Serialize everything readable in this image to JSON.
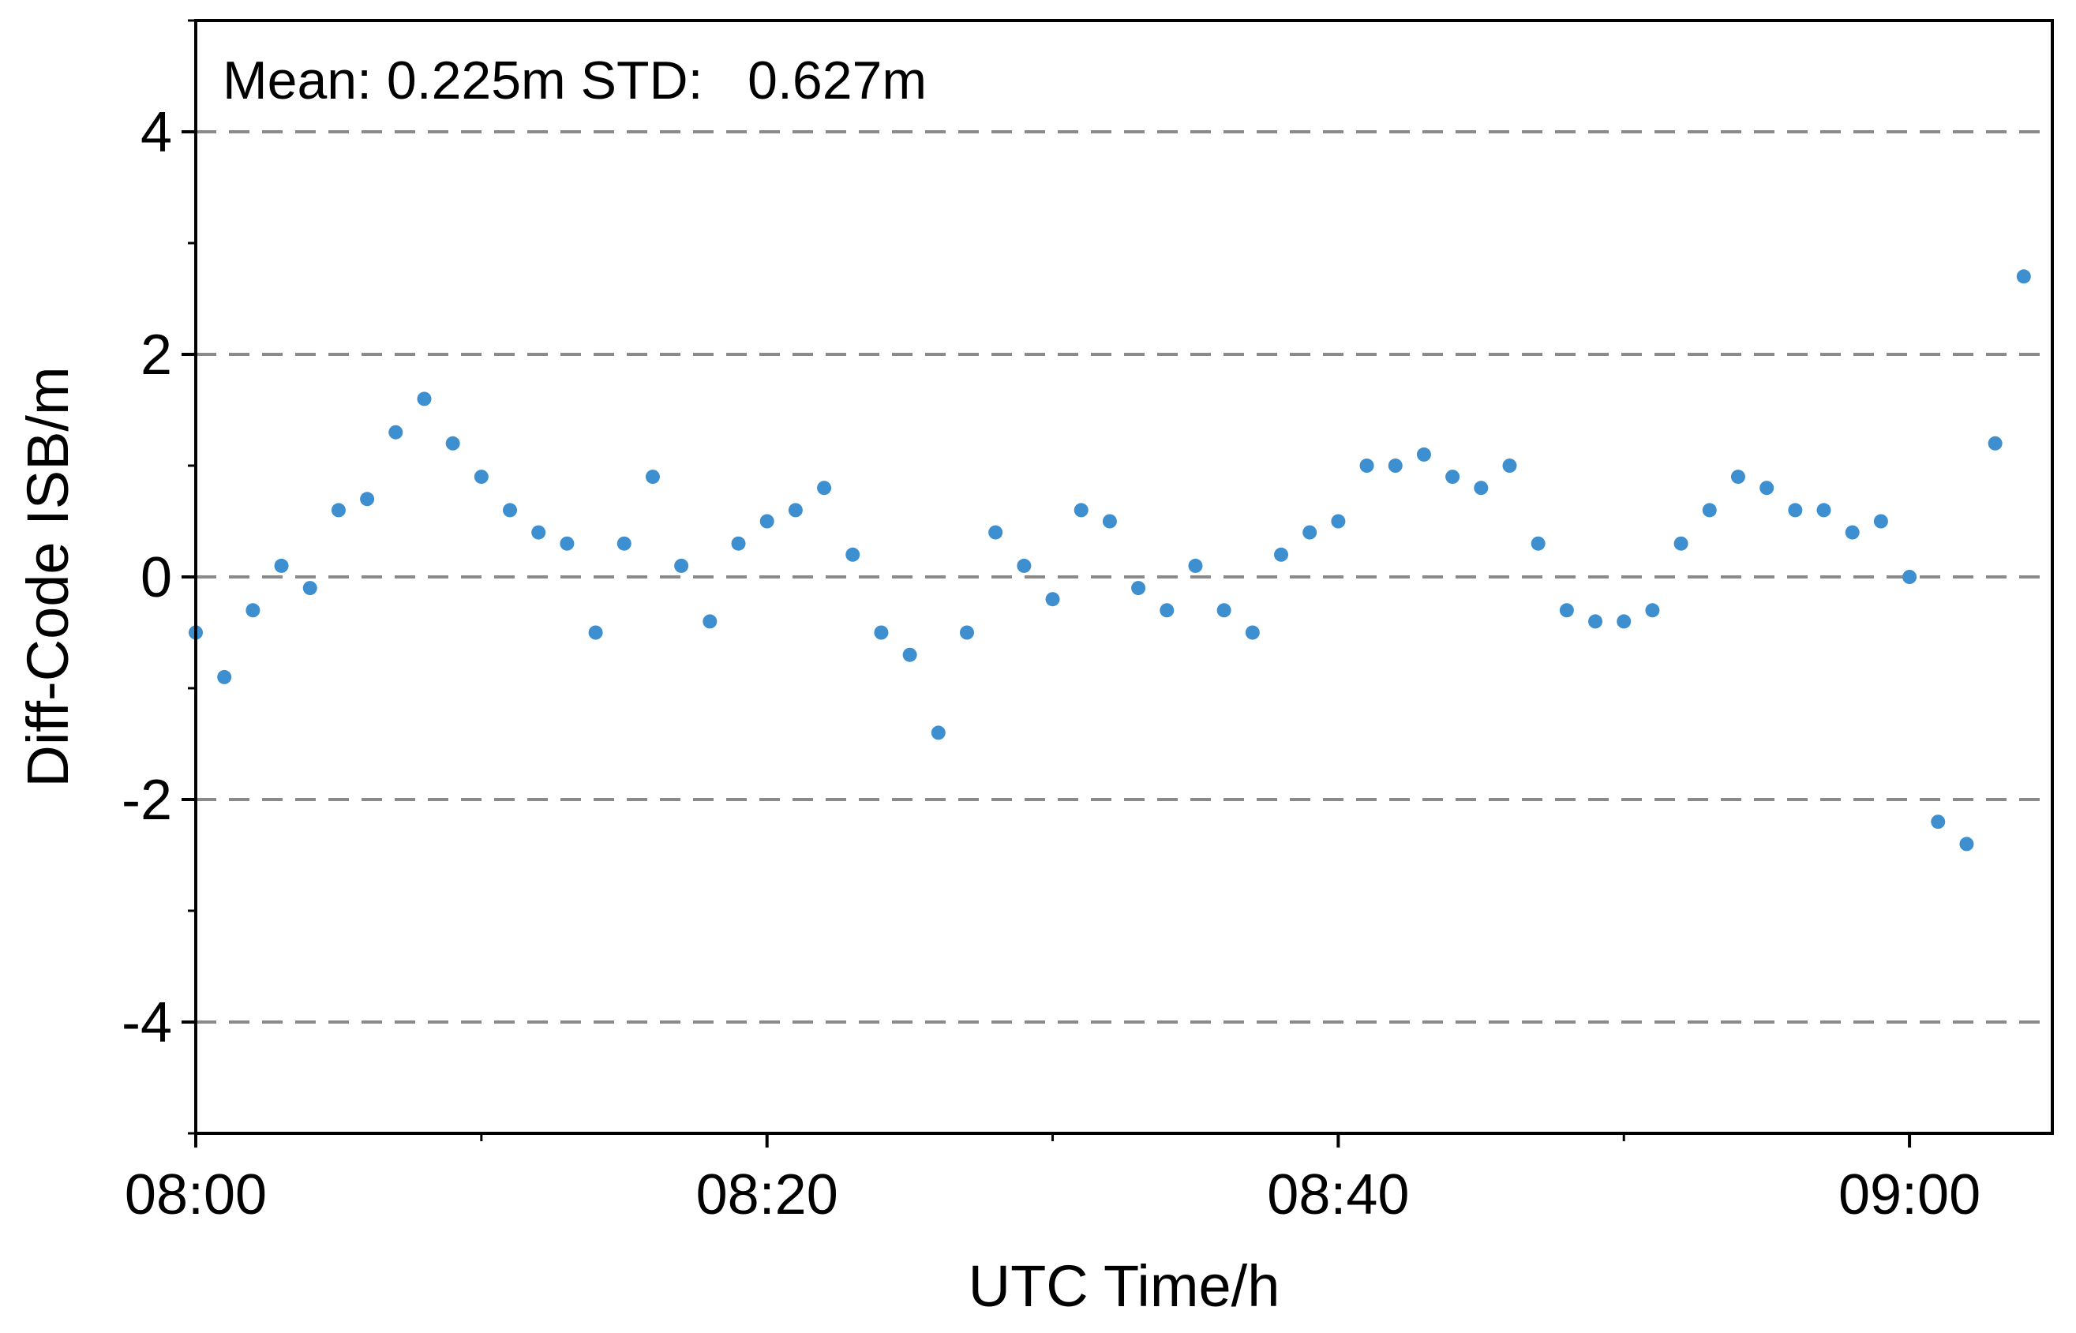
{
  "chart_data": {
    "type": "scatter",
    "annotation": "Mean: 0.225m STD:   0.627m",
    "xlabel": "UTC Time/h",
    "ylabel": "Diff-Code ISB/m",
    "xlim": [
      "08:00",
      "09:05"
    ],
    "ylim": [
      -5,
      5
    ],
    "x_ticks": [
      "08:00",
      "08:20",
      "08:40",
      "09:00"
    ],
    "y_ticks": [
      4,
      2,
      0,
      -2,
      -4
    ],
    "y_tick_labels": [
      "4",
      "2",
      "0",
      "-2",
      "-4"
    ],
    "grid": "dashed horizontal lines at major y ticks",
    "legend": "none",
    "marker_color": "#3d8fcf",
    "series": [
      {
        "x_minutes_after_0800": [
          0,
          1,
          2,
          3,
          4,
          5,
          6,
          7,
          8,
          9,
          10,
          11,
          12,
          13,
          14,
          15,
          16,
          17,
          18,
          19,
          20,
          21,
          22,
          23,
          24,
          25,
          26,
          27,
          28,
          29,
          30,
          31,
          32,
          33,
          34,
          35,
          36,
          37,
          38,
          39,
          40,
          41,
          42,
          43,
          44,
          45,
          46,
          47,
          48,
          49,
          50,
          51,
          52,
          53,
          54,
          55,
          56,
          57,
          58,
          59,
          60,
          61,
          62,
          63,
          64
        ],
        "values": [
          -0.5,
          -0.9,
          -0.3,
          0.1,
          -0.1,
          0.6,
          0.7,
          1.3,
          1.6,
          1.2,
          0.9,
          0.6,
          0.4,
          0.3,
          -0.5,
          0.3,
          0.9,
          0.1,
          -0.4,
          0.3,
          0.5,
          0.6,
          0.8,
          0.2,
          -0.5,
          -0.7,
          -1.4,
          -0.5,
          0.4,
          0.1,
          -0.2,
          0.6,
          0.5,
          -0.1,
          -0.3,
          0.1,
          -0.3,
          -0.5,
          0.2,
          0.4,
          0.5,
          1.0,
          1.0,
          1.1,
          0.9,
          0.8,
          1.0,
          0.3,
          -0.3,
          -0.4,
          -0.4,
          -0.3,
          0.3,
          0.6,
          0.9,
          0.8,
          0.6,
          0.6,
          0.4,
          0.5,
          0.0,
          -2.2,
          -2.4,
          1.2,
          2.7
        ]
      }
    ]
  }
}
